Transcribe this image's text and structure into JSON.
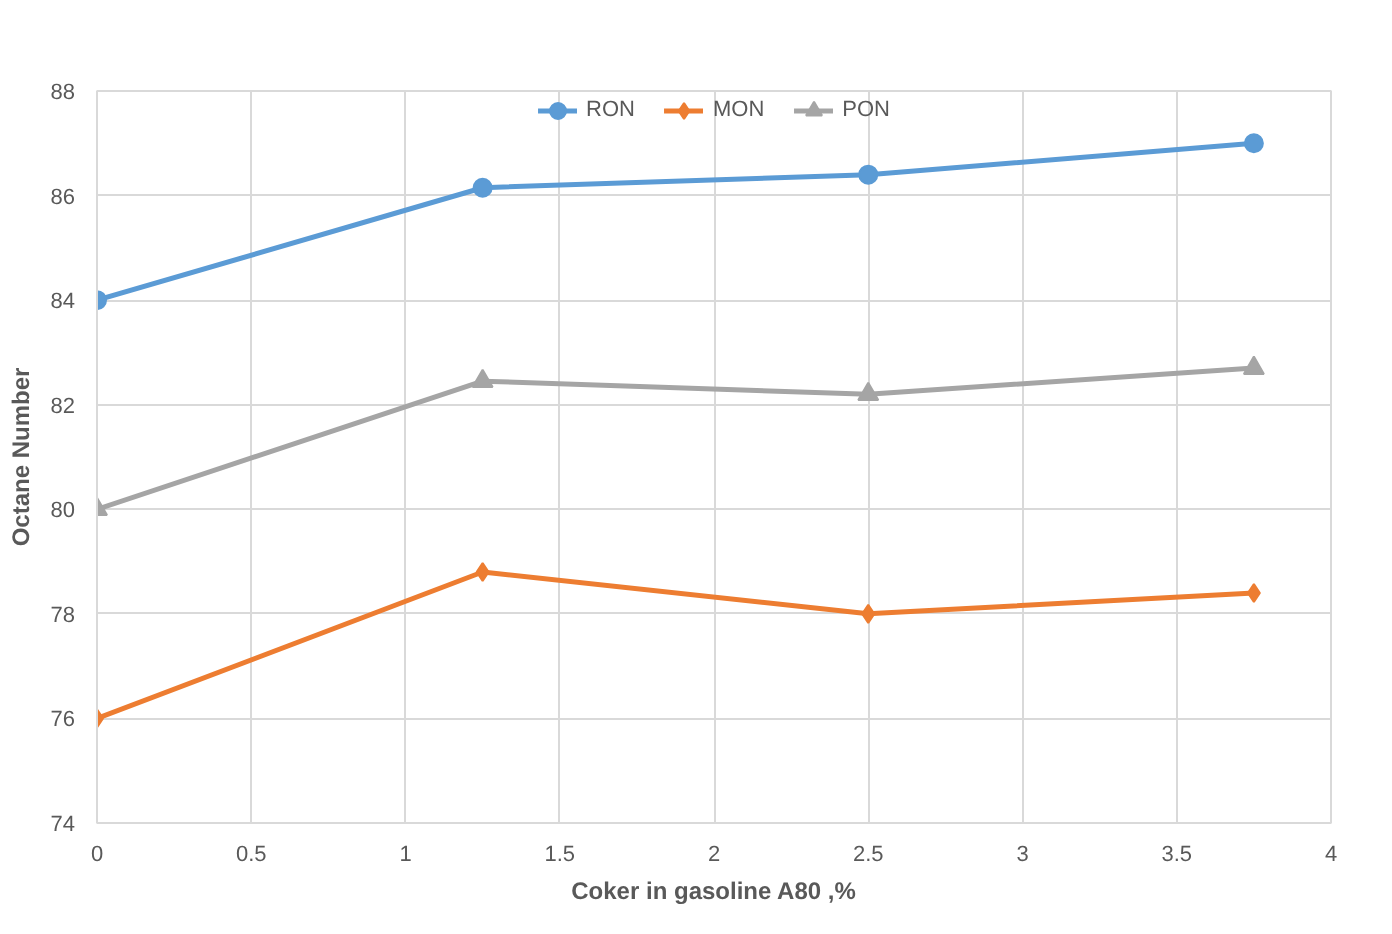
{
  "chart_data": {
    "type": "line",
    "xlabel": "Coker in gasoline A80 ,%",
    "ylabel": "Octane Number",
    "x": [
      0,
      1.25,
      2.5,
      3.75
    ],
    "series": [
      {
        "name": "RON",
        "color": "#5b9bd5",
        "marker": "circle",
        "values": [
          84,
          86.15,
          86.4,
          87
        ]
      },
      {
        "name": "MON",
        "color": "#ed7d31",
        "marker": "diamond",
        "values": [
          76,
          78.8,
          78.0,
          78.4
        ]
      },
      {
        "name": "PON",
        "color": "#a5a5a5",
        "marker": "triangle",
        "values": [
          80,
          82.45,
          82.2,
          82.7
        ]
      }
    ],
    "xlim": [
      0,
      4
    ],
    "xticks": [
      0,
      0.5,
      1,
      1.5,
      2,
      2.5,
      3,
      3.5,
      4
    ],
    "ylim": [
      74,
      88
    ],
    "yticks": [
      74,
      76,
      78,
      80,
      82,
      84,
      86,
      88
    ],
    "grid": true,
    "legend": "top",
    "line_style": "solid"
  }
}
